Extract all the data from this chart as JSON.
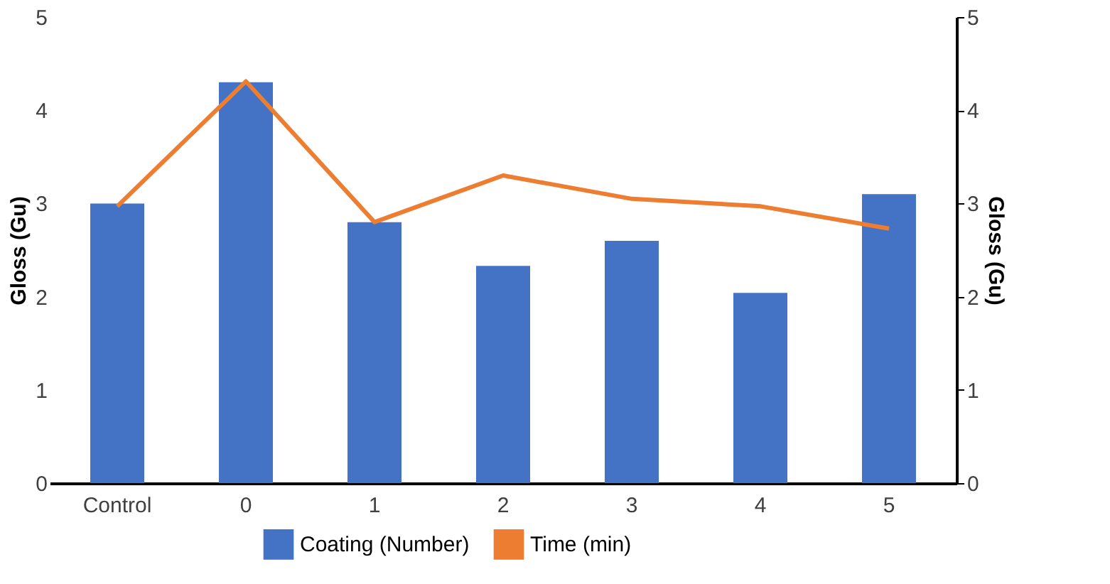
{
  "chart_data": {
    "type": "bar",
    "categories": [
      "Control",
      "0",
      "1",
      "2",
      "3",
      "4",
      "5"
    ],
    "ylabel": "Gloss (Gu)",
    "y2label": "Gloss (Gu)",
    "ylim": [
      0,
      5
    ],
    "yticks": [
      0,
      1,
      2,
      3,
      4,
      5
    ],
    "y2lim": [
      0,
      5
    ],
    "y2ticks": [
      0,
      1,
      2,
      3,
      4,
      5
    ],
    "grid": false,
    "legend": "bottom",
    "series": [
      {
        "name": "Coating (Number)",
        "color": "#4472c4",
        "values": [
          3.0,
          4.3,
          2.8,
          2.33,
          2.6,
          2.04,
          3.1
        ]
      },
      {
        "name": "Time (min)",
        "color": "#ed7d31",
        "type": "line",
        "axis": "y2",
        "marker": "none",
        "line_style": "solid",
        "values": [
          2.97,
          4.31,
          2.8,
          3.3,
          3.05,
          2.97,
          2.73
        ]
      }
    ]
  }
}
